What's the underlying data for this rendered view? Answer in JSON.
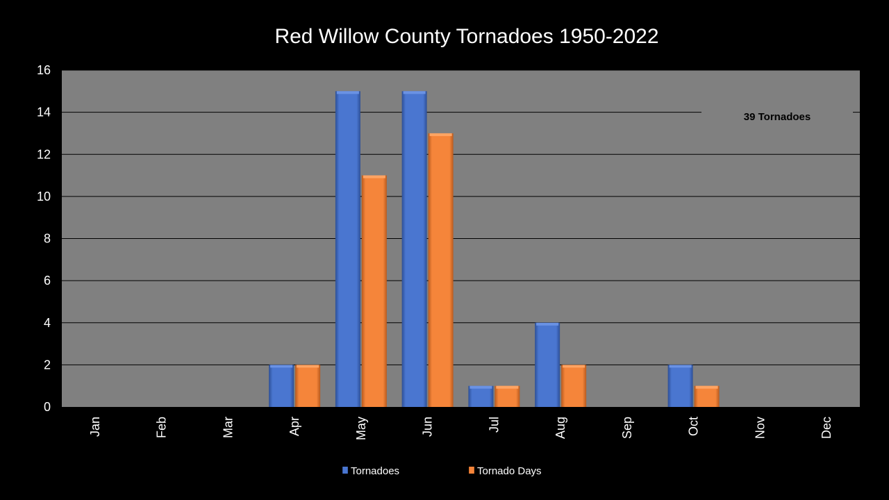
{
  "chart_data": {
    "type": "bar",
    "title": "Red Willow County Tornadoes 1950-2022",
    "categories": [
      "Jan",
      "Feb",
      "Mar",
      "Apr",
      "May",
      "Jun",
      "Jul",
      "Aug",
      "Sep",
      "Oct",
      "Nov",
      "Dec"
    ],
    "series": [
      {
        "name": "Tornadoes",
        "color": "#4a76d0",
        "values": [
          0,
          0,
          0,
          2,
          15,
          15,
          1,
          4,
          0,
          2,
          0,
          0
        ]
      },
      {
        "name": "Tornado Days",
        "color": "#f5853a",
        "values": [
          0,
          0,
          0,
          2,
          11,
          13,
          1,
          2,
          0,
          1,
          0,
          0
        ]
      }
    ],
    "xlabel": "",
    "ylabel": "",
    "ylim": [
      0,
      16
    ],
    "yticks": [
      0,
      2,
      4,
      6,
      8,
      10,
      12,
      14,
      16
    ],
    "grid": true,
    "legend_position": "bottom",
    "annotation": "39 Tornadoes",
    "plot_background": "#808080",
    "page_background": "#000000"
  }
}
